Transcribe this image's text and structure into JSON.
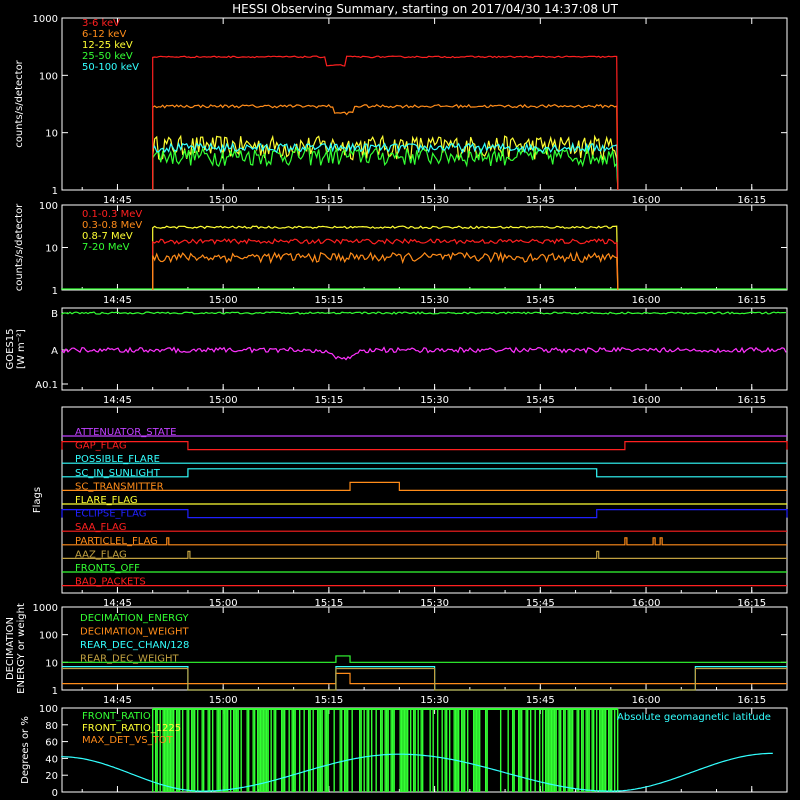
{
  "title": "HESSI Observing Summary, starting on 2017/04/30 14:37:08 UT",
  "time_ticks": [
    "14:45",
    "15:00",
    "15:15",
    "15:30",
    "15:45",
    "16:00",
    "16:15"
  ],
  "colors": {
    "red": "#ff2020",
    "orange": "#ff8c1a",
    "yellow": "#ffff33",
    "green": "#33ff33",
    "cyan": "#33ffff",
    "magenta": "#ff33ff",
    "purple": "#c040ff",
    "blue": "#2020ff",
    "olive": "#c0a040",
    "axis": "#ffffff"
  },
  "chart_data": [
    {
      "type": "line",
      "panel": "lightcurve-low",
      "ylabel": "counts/s/detector",
      "yscale": "log",
      "ylim": [
        1,
        1000
      ],
      "y_ticks": [
        "1",
        "10",
        "100",
        "1000"
      ],
      "x_range": [
        "14:37:08",
        "16:20"
      ],
      "legend_position": "top-left",
      "series": [
        {
          "name": "3-6 keV",
          "color": "red",
          "t_start": "14:50",
          "t_end": "15:56",
          "level": 210,
          "dip": {
            "t": "15:16",
            "value": 150
          }
        },
        {
          "name": "6-12 keV",
          "color": "orange",
          "t_start": "14:50",
          "t_end": "15:56",
          "level": 29,
          "dip": {
            "t": "15:17",
            "value": 22
          }
        },
        {
          "name": "12-25 keV",
          "color": "yellow",
          "t_start": "14:50",
          "t_end": "15:56",
          "level": 6
        },
        {
          "name": "25-50 keV",
          "color": "green",
          "t_start": "14:50",
          "t_end": "15:56",
          "level": 4
        },
        {
          "name": "50-100 keV",
          "color": "cyan",
          "t_start": "14:50",
          "t_end": "15:56",
          "level": 5.5
        }
      ]
    },
    {
      "type": "line",
      "panel": "lightcurve-high",
      "ylabel": "counts/s/detector",
      "yscale": "log",
      "ylim": [
        1,
        100
      ],
      "y_ticks": [
        "1",
        "10",
        "100"
      ],
      "legend_position": "top-left",
      "series": [
        {
          "name": "0.1-0.3 MeV",
          "color": "red",
          "t_start": "14:50",
          "t_end": "15:56",
          "level": 14
        },
        {
          "name": "0.3-0.8 MeV",
          "color": "orange",
          "t_start": "14:50",
          "t_end": "15:56",
          "level": 6
        },
        {
          "name": "0.8-7 MeV",
          "color": "yellow",
          "t_start": "14:50",
          "t_end": "15:56",
          "level": 30
        },
        {
          "name": "7-20 MeV",
          "color": "green",
          "t_start": "14:37",
          "t_end": "16:20",
          "level": 1
        }
      ]
    },
    {
      "type": "line",
      "panel": "goes",
      "ylabel": "GOES15",
      "ylabel2": "[W m⁻²]",
      "y_ticks": [
        "A0.1",
        "A",
        "B"
      ],
      "series": [
        {
          "name": "long",
          "color": "green",
          "level_class": "B"
        },
        {
          "name": "short",
          "color": "magenta",
          "level_class": "A",
          "dip": {
            "t": "15:17"
          }
        }
      ]
    },
    {
      "type": "line",
      "panel": "flags",
      "ylabel": "Flags",
      "flags": [
        {
          "name": "ATTENUATOR_STATE",
          "color": "purple",
          "high_intervals": []
        },
        {
          "name": "GAP_FLAG",
          "color": "red",
          "high_intervals": [
            [
              "14:37",
              "14:55"
            ],
            [
              "15:57",
              "16:20"
            ]
          ]
        },
        {
          "name": "POSSIBLE_FLARE",
          "color": "cyan",
          "high_intervals": []
        },
        {
          "name": "SC_IN_SUNLIGHT",
          "color": "cyan",
          "high_intervals": [
            [
              "14:55",
              "15:53"
            ]
          ]
        },
        {
          "name": "SC_TRANSMITTER",
          "color": "orange",
          "high_intervals": [
            [
              "15:18",
              "15:25"
            ]
          ]
        },
        {
          "name": "FLARE_FLAG",
          "color": "yellow",
          "high_intervals": []
        },
        {
          "name": "ECLIPSE_FLAG",
          "color": "blue",
          "high_intervals": [
            [
              "14:37",
              "14:55"
            ],
            [
              "15:53",
              "16:20"
            ]
          ]
        },
        {
          "name": "SAA_FLAG",
          "color": "red",
          "high_intervals": []
        },
        {
          "name": "PARTICLEL_FLAG",
          "color": "orange",
          "spikes": [
            "14:52",
            "15:57",
            "16:01",
            "16:02"
          ]
        },
        {
          "name": "AAZ_FLAG",
          "color": "olive",
          "spikes": [
            "14:55",
            "15:53"
          ]
        },
        {
          "name": "FRONTS_OFF",
          "color": "green",
          "high_intervals": []
        },
        {
          "name": "BAD_PACKETS",
          "color": "red",
          "high_intervals": []
        }
      ]
    },
    {
      "type": "line",
      "panel": "decimation",
      "ylabel": "DECIMATION",
      "ylabel2": "ENERGY or weight",
      "yscale": "log",
      "ylim": [
        1,
        1000
      ],
      "y_ticks": [
        "1",
        "10",
        "100",
        "1000"
      ],
      "legend_position": "top-left",
      "series": [
        {
          "name": "DECIMATION_ENERGY",
          "color": "green",
          "level": 10,
          "bump": [
            [
              "15:16",
              "15:18",
              17
            ]
          ]
        },
        {
          "name": "DECIMATION_WEIGHT",
          "color": "orange",
          "level": 1.7,
          "bump": [
            [
              "15:16",
              "15:18",
              4
            ]
          ]
        },
        {
          "name": "REAR_DEC_CHAN/128",
          "color": "cyan",
          "level": 7,
          "low_intervals": [
            [
              "14:55",
              "15:16"
            ],
            [
              "15:30",
              "16:07"
            ]
          ]
        },
        {
          "name": "REAR_DEC_WEIGHT",
          "color": "olive",
          "level": 6,
          "low_intervals": [
            [
              "14:55",
              "15:16"
            ],
            [
              "15:30",
              "16:07"
            ]
          ]
        }
      ]
    },
    {
      "type": "line",
      "panel": "ratios",
      "ylabel": "Degrees or %",
      "ylim": [
        0,
        100
      ],
      "y_ticks": [
        "0",
        "20",
        "40",
        "60",
        "80",
        "100"
      ],
      "legend_position": "top-left",
      "annotation": "Absolute geomagnetic latitude",
      "series": [
        {
          "name": "FRONT_RATIO",
          "color": "green",
          "t_start": "14:50",
          "t_end": "15:56"
        },
        {
          "name": "FRONT_RATIO_1225",
          "color": "yellow"
        },
        {
          "name": "MAX_DET_VS_TOT",
          "color": "orange"
        },
        {
          "name": "Absolute geomagnetic latitude",
          "color": "cyan",
          "extrema": [
            [
              "14:37",
              42
            ],
            [
              "14:57",
              1
            ],
            [
              "15:25",
              45
            ],
            [
              "15:55",
              1
            ],
            [
              "16:18",
              46
            ]
          ]
        }
      ]
    }
  ]
}
